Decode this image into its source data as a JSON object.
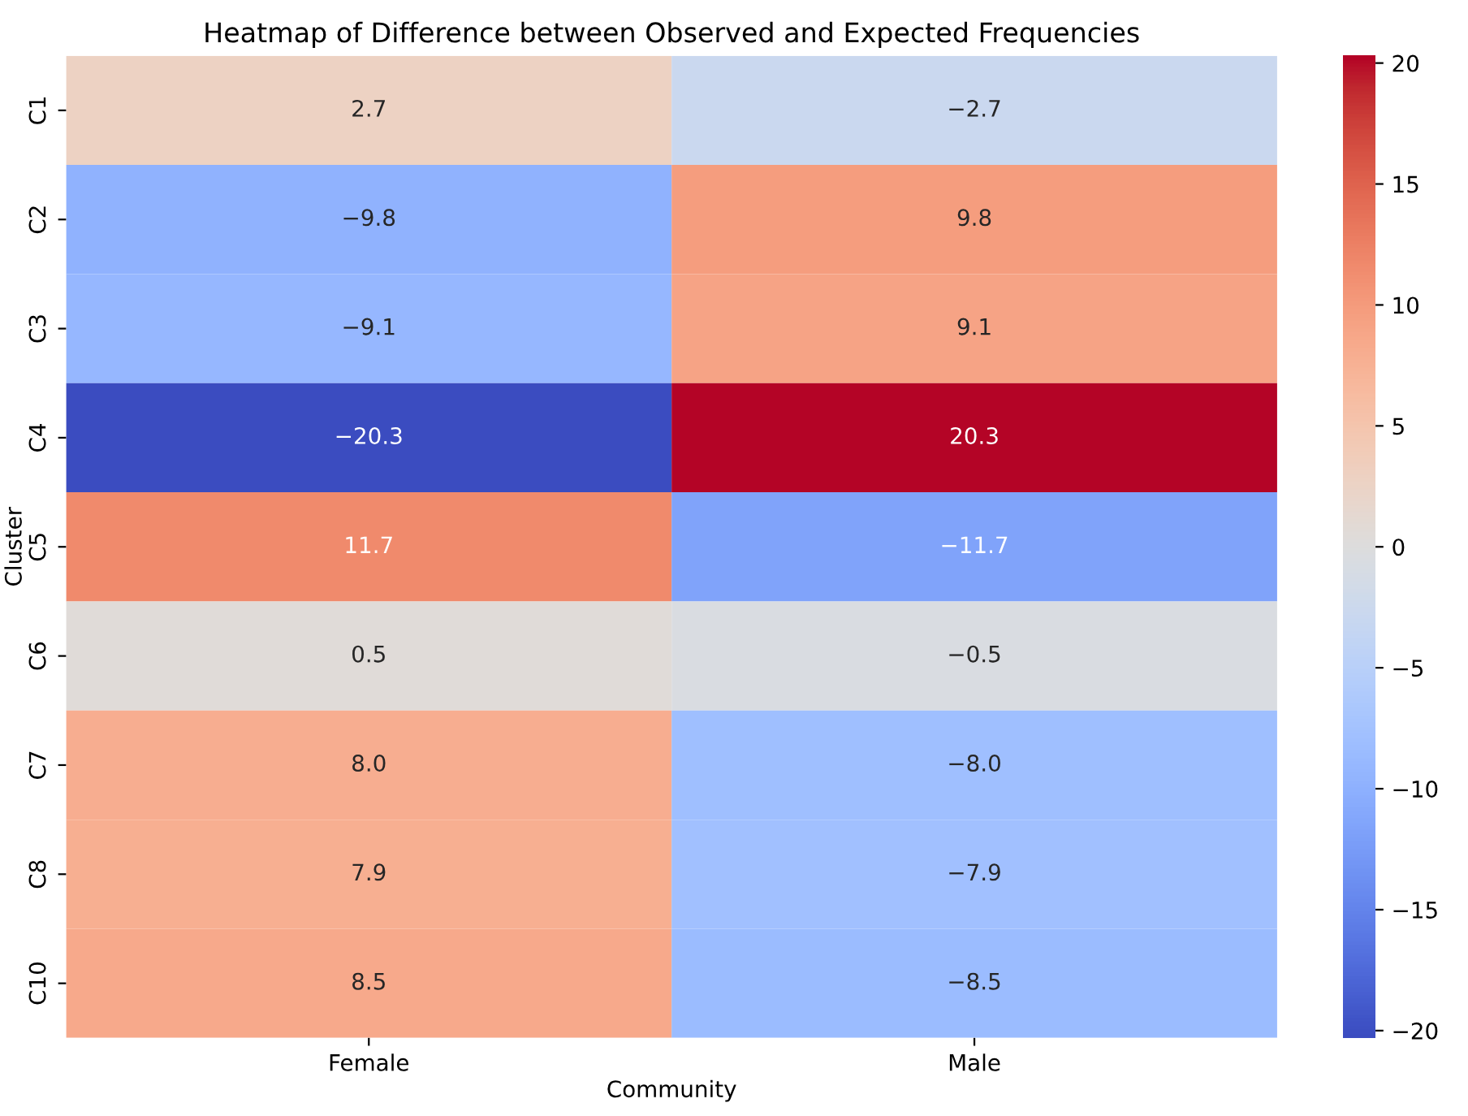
{
  "chart_data": {
    "type": "heatmap",
    "title": "Heatmap of Difference between Observed and Expected Frequencies",
    "xlabel": "Community",
    "ylabel": "Cluster",
    "categories": [
      "Female",
      "Male"
    ],
    "y_categories": [
      "C1",
      "C2",
      "C3",
      "C4",
      "C5",
      "C6",
      "C7",
      "C8",
      "C10"
    ],
    "cells": [
      [
        2.7,
        -2.7
      ],
      [
        -9.8,
        9.8
      ],
      [
        -9.1,
        9.1
      ],
      [
        -20.3,
        20.3
      ],
      [
        11.7,
        -11.7
      ],
      [
        0.5,
        -0.5
      ],
      [
        8.0,
        -8.0
      ],
      [
        7.9,
        -7.9
      ],
      [
        8.5,
        -8.5
      ]
    ],
    "cell_labels": [
      [
        "2.7",
        "−2.7"
      ],
      [
        "−9.8",
        "9.8"
      ],
      [
        "−9.1",
        "9.1"
      ],
      [
        "−20.3",
        "20.3"
      ],
      [
        "11.7",
        "−11.7"
      ],
      [
        "0.5",
        "−0.5"
      ],
      [
        "8.0",
        "−8.0"
      ],
      [
        "7.9",
        "−7.9"
      ],
      [
        "8.5",
        "−8.5"
      ]
    ],
    "clim": [
      -20.3,
      20.3
    ],
    "cticks": [
      {
        "value": -20,
        "label": "−20"
      },
      {
        "value": -15,
        "label": "−15"
      },
      {
        "value": -10,
        "label": "−10"
      },
      {
        "value": -5,
        "label": "−5"
      },
      0,
      5,
      10,
      15,
      20
    ]
  }
}
